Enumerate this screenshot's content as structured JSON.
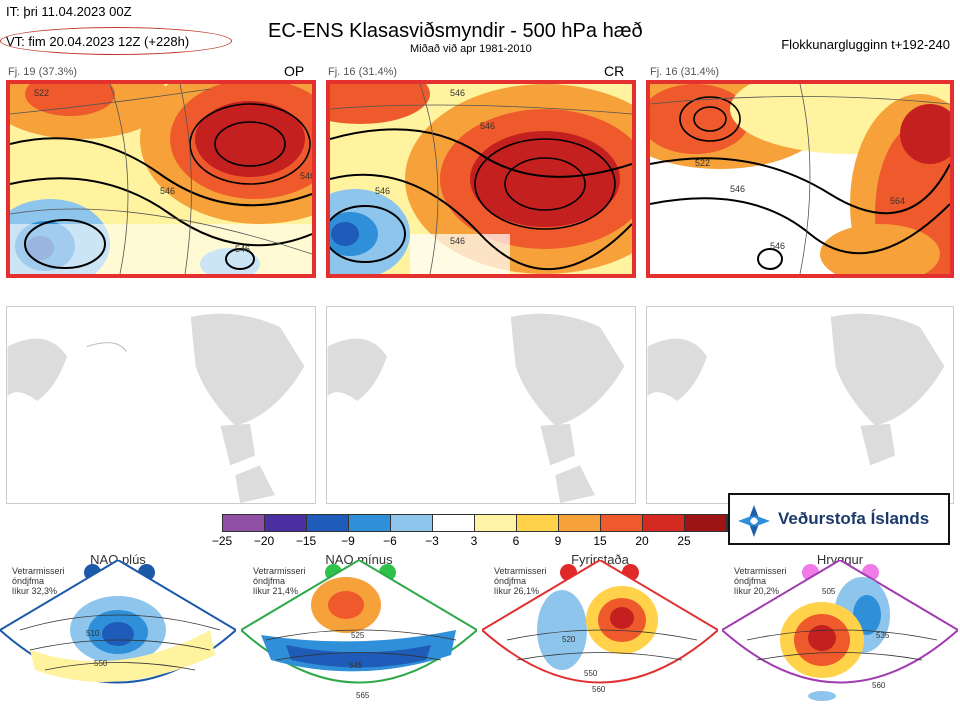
{
  "header": {
    "it": "IT: þri 11.04.2023 00Z",
    "vt": "VT: fim 20.04.2023 12Z  (+228h)",
    "title": "EC-ENS Klasasviðsmyndir - 500 hPa hæð",
    "subtitle": "Miðað við apr 1981-2010",
    "window": "Flokkunarglugginn t+192-240"
  },
  "panels_top": [
    {
      "fj": "Fj. 19 (37.3%)",
      "tag": "OP",
      "contours": [
        "546",
        "546",
        "546",
        "522"
      ]
    },
    {
      "fj": "Fj. 16 (31.4%)",
      "tag": "CR",
      "contours": [
        "546",
        "546",
        "546",
        "546"
      ]
    },
    {
      "fj": "Fj. 16 (31.4%)",
      "tag": "",
      "contours": [
        "546",
        "546",
        "564",
        "522"
      ]
    }
  ],
  "colorbar": {
    "ticks": [
      "−25",
      "−20",
      "−15",
      "−9",
      "−6",
      "−3",
      "3",
      "6",
      "9",
      "15",
      "20",
      "25"
    ],
    "colors": [
      "#8e4fa5",
      "#4b2fa0",
      "#1f5bb8",
      "#2f8fd8",
      "#8ec5ec",
      "#ffffff",
      "#fff4a6",
      "#ffd24a",
      "#f6a13a",
      "#ee5a2c",
      "#d42a22",
      "#9e1414"
    ]
  },
  "logo": {
    "text": "Veðurstofa Íslands",
    "icon": "vedurstofa-logo-icon"
  },
  "regimes": [
    {
      "name": "NAO plús",
      "meta": [
        "Vetrarmisseri",
        "óndjfma",
        "líkur 32,3%"
      ],
      "color": "#1a5aa8",
      "dot": "#1a5aa8",
      "labels": [
        "510",
        "550"
      ]
    },
    {
      "name": "NAO mínus",
      "meta": [
        "Vetrarmisseri",
        "óndjfma",
        "líkur 21,4%"
      ],
      "color": "#2fa84a",
      "dot": "#2fc24a",
      "labels": [
        "525",
        "545",
        "565"
      ]
    },
    {
      "name": "Fyrirstaða",
      "meta": [
        "Vetrarmisseri",
        "óndjfma",
        "líkur 26,1%"
      ],
      "color": "#e03030",
      "dot": "#e02828",
      "labels": [
        "520",
        "550",
        "560"
      ]
    },
    {
      "name": "Hryggur",
      "meta": [
        "Vetrarmisseri",
        "óndjfma",
        "líkur 20,2%"
      ],
      "color": "#a03cb0",
      "dot": "#f07ae8",
      "labels": [
        "505",
        "535",
        "560"
      ]
    }
  ]
}
